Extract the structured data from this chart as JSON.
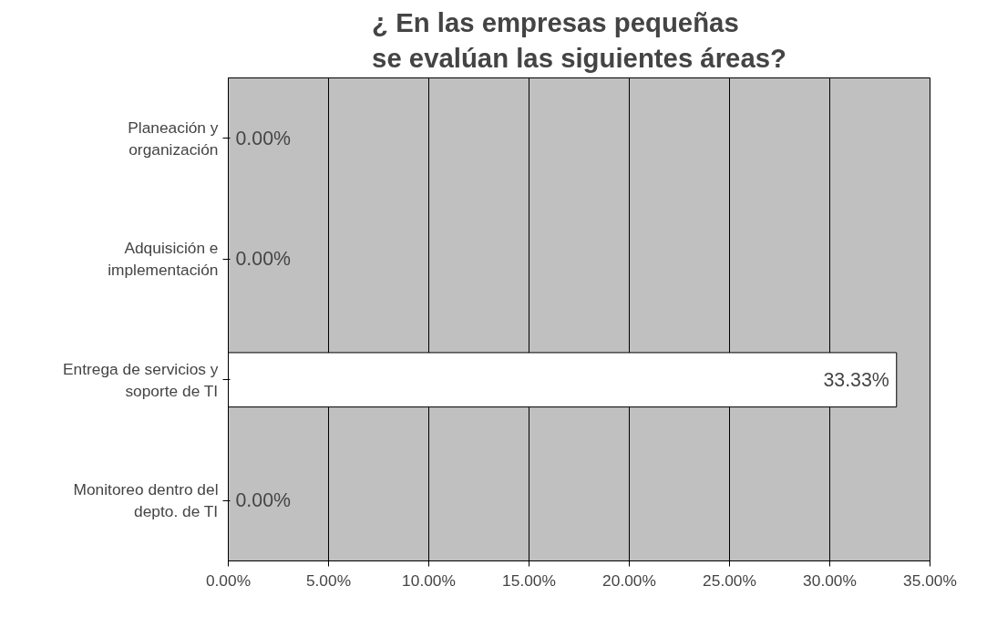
{
  "chart_data": {
    "type": "bar",
    "orientation": "horizontal",
    "title": "¿ En las empresas pequeñas\nse evalúan las siguientes áreas?",
    "categories": [
      "Planeación y organización",
      "Adquisición e implementación",
      "Entrega de servicios y soporte de TI",
      "Monitoreo dentro del depto. de TI"
    ],
    "values": [
      0,
      0,
      33.33,
      0
    ],
    "value_labels": [
      "0.00%",
      "0.00%",
      "33.33%",
      "0.00%"
    ],
    "color": "#ffffff",
    "xlim": [
      0,
      35
    ],
    "xticks": [
      {
        "value": 0,
        "label": "0.00%"
      },
      {
        "value": 5,
        "label": "5.00%"
      },
      {
        "value": 10,
        "label": "10.00%"
      },
      {
        "value": 15,
        "label": "15.00%"
      },
      {
        "value": 20,
        "label": "20.00%"
      },
      {
        "value": 25,
        "label": "25.00%"
      },
      {
        "value": 30,
        "label": "30.00%"
      },
      {
        "value": 35,
        "label": "35.00%"
      }
    ],
    "grid": "x"
  }
}
